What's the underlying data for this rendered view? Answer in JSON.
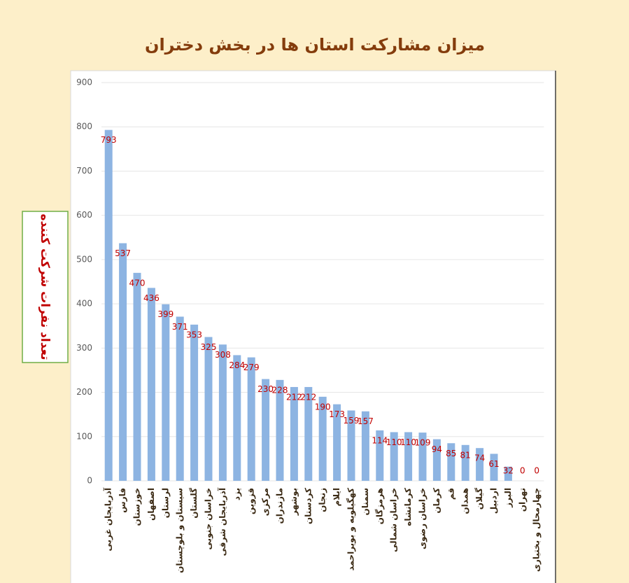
{
  "chart_data": {
    "type": "bar",
    "title": "میزان مشارکت استان ها در بخش دختران",
    "y_label": "تعداد نفرات شرکت کننده",
    "categories": [
      "آذربایجان غربی",
      "فارس",
      "خوزستان",
      "اصفهان",
      "لرستان",
      "سیستان و بلوچستان",
      "گلستان",
      "خراسان جنوبی",
      "آذربایجان شرقی",
      "یزد",
      "قزوین",
      "مرکزی",
      "مازندران",
      "بوشهر",
      "کردستان",
      "زنجان",
      "ایلام",
      "کهگیلویه و بویراحمد",
      "سمنان",
      "هرمزگان",
      "خراسان شمالی",
      "کرمانشاه",
      "خراسان رضوی",
      "کرمان",
      "قم",
      "همدان",
      "گیلان",
      "اردبیل",
      "البرز",
      "تهران",
      "چهارمحال و بختیاری"
    ],
    "values": [
      793,
      537,
      470,
      436,
      399,
      371,
      353,
      325,
      308,
      284,
      279,
      230,
      228,
      212,
      212,
      190,
      173,
      159,
      157,
      114,
      110,
      110,
      109,
      94,
      85,
      81,
      74,
      61,
      32,
      0,
      0
    ],
    "color": "#8db4e2",
    "ylim": [
      0,
      900
    ],
    "yticks": [
      0,
      100,
      200,
      300,
      400,
      500,
      600,
      700,
      800,
      900
    ],
    "grid": true
  }
}
